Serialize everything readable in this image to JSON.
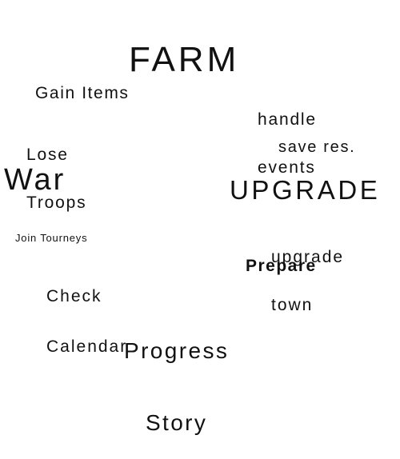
{
  "nodes": {
    "farm": "FARM",
    "gain_items": "Gain Items",
    "handle_events": [
      "handle",
      "events"
    ],
    "lose_troops": [
      "Lose",
      "Troops"
    ],
    "save_res": "save res.",
    "war": "War",
    "upgrade": "UPGRADE",
    "upgrade_town": [
      "upgrade",
      "town"
    ],
    "join_tourneys": "Join Tourneys",
    "check_calendar": [
      "Check",
      "Calendar"
    ],
    "prepare": "Prepare",
    "progress_story": [
      "Progress",
      "Story"
    ]
  }
}
